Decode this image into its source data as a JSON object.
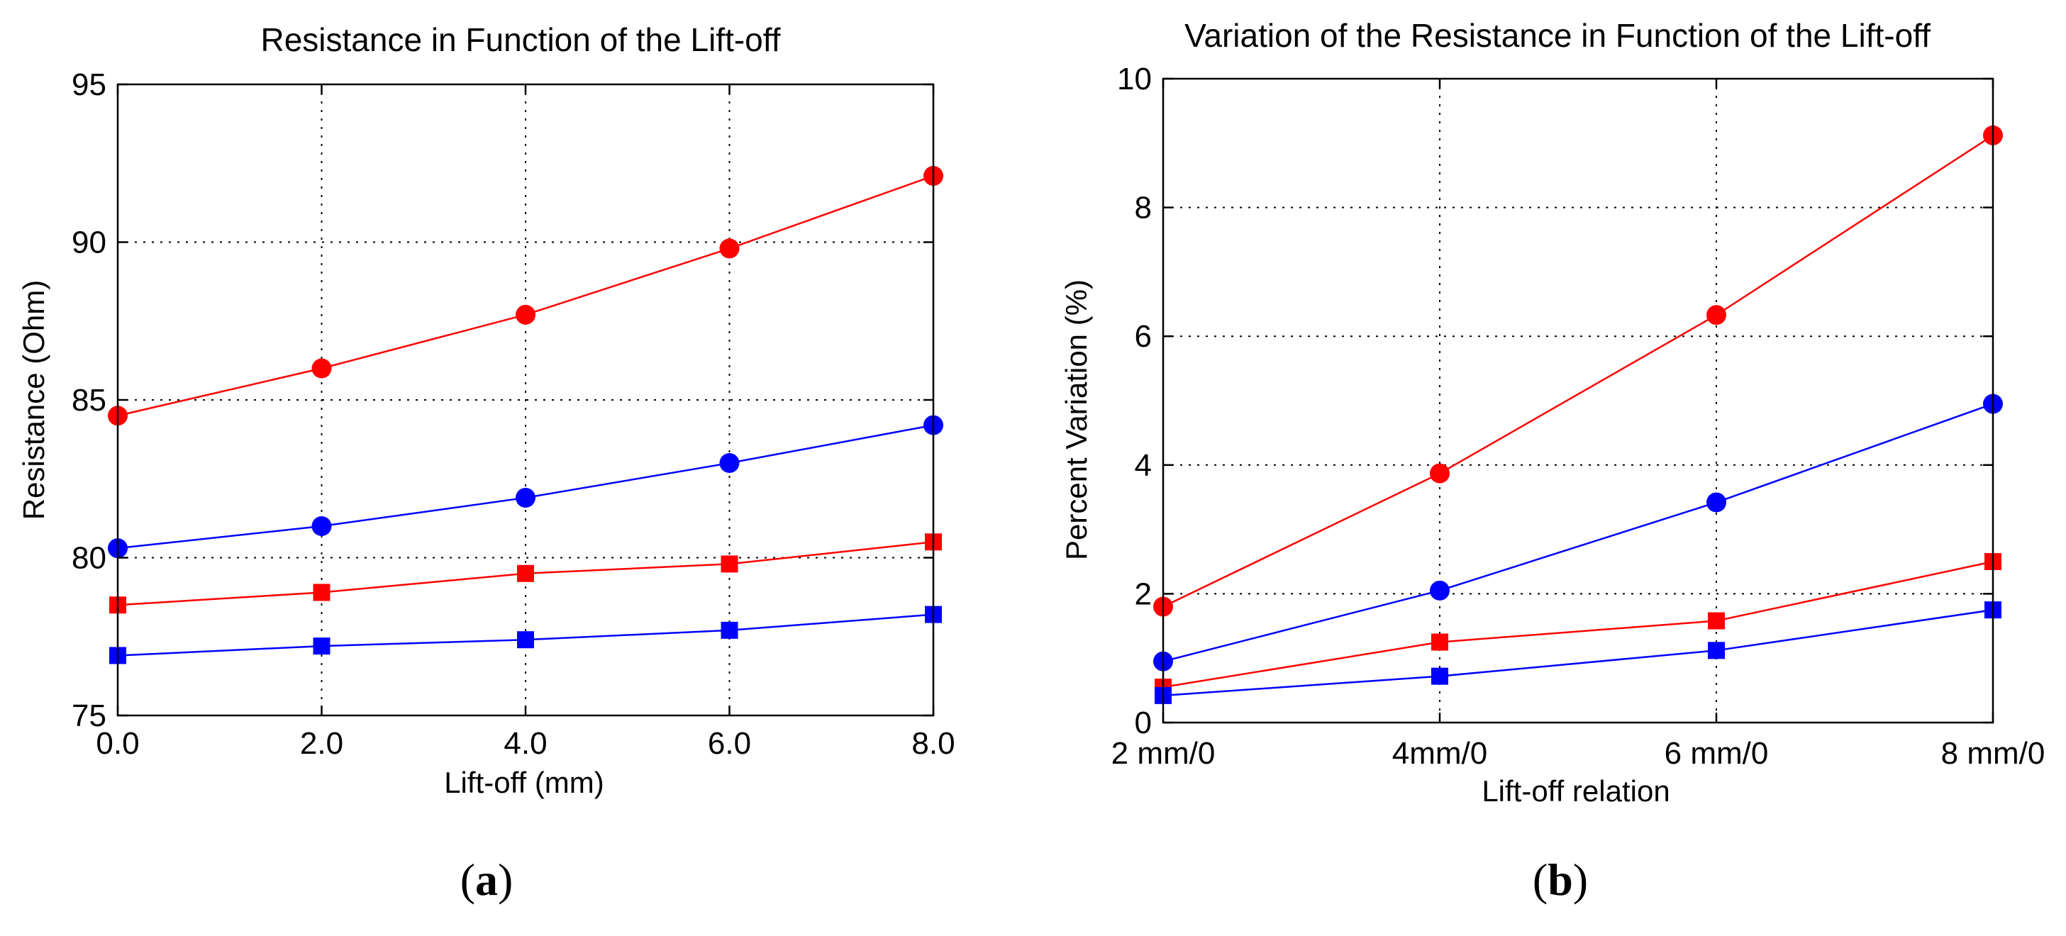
{
  "chart_data": [
    {
      "id": "a",
      "type": "line",
      "panel_label": "a",
      "title": "Resistance in Function of the Lift-off",
      "xlabel": "Lift-off (mm)",
      "ylabel": "Resistance  (Ohm)",
      "x": [
        0,
        2,
        4,
        6,
        8
      ],
      "xtick_labels": [
        "0.0",
        "2.0",
        "4.0",
        "6.0",
        "8.0"
      ],
      "xlim": [
        0,
        8
      ],
      "ylim": [
        75,
        95
      ],
      "yticks": [
        75,
        80,
        85,
        90,
        95
      ],
      "ytick_labels": [
        "75",
        "80",
        "85",
        "90",
        "95"
      ],
      "grid": true,
      "series": [
        {
          "name": "red-circle",
          "color": "#ff0000",
          "marker": "circle",
          "values": [
            84.5,
            86.0,
            87.7,
            89.8,
            92.1
          ]
        },
        {
          "name": "blue-circle",
          "color": "#0000ff",
          "marker": "circle",
          "values": [
            80.3,
            81.0,
            81.9,
            83.0,
            84.2
          ]
        },
        {
          "name": "red-square",
          "color": "#ff0000",
          "marker": "square",
          "values": [
            78.5,
            78.9,
            79.5,
            79.8,
            80.5
          ]
        },
        {
          "name": "blue-square",
          "color": "#0000ff",
          "marker": "square",
          "values": [
            76.9,
            77.2,
            77.4,
            77.7,
            78.2
          ]
        }
      ]
    },
    {
      "id": "b",
      "type": "line",
      "panel_label": "b",
      "title": "Variation of the Resistance in Function of the Lift-off",
      "xlabel": "Lift-off relation",
      "ylabel": "Percent Variation (%)",
      "x": [
        0,
        1,
        2,
        3
      ],
      "xtick_labels": [
        "2 mm/0",
        "4mm/0",
        "6 mm/0",
        "8 mm/0"
      ],
      "xlim": [
        0,
        3
      ],
      "ylim": [
        0,
        10
      ],
      "yticks": [
        0,
        2,
        4,
        6,
        8,
        10
      ],
      "ytick_labels": [
        "0",
        "2",
        "4",
        "6",
        "8",
        "10"
      ],
      "grid": true,
      "series": [
        {
          "name": "red-circle",
          "color": "#ff0000",
          "marker": "circle",
          "values": [
            1.8,
            3.87,
            6.33,
            9.12
          ]
        },
        {
          "name": "blue-circle",
          "color": "#0000ff",
          "marker": "circle",
          "values": [
            0.95,
            2.05,
            3.42,
            4.95
          ]
        },
        {
          "name": "red-square",
          "color": "#ff0000",
          "marker": "square",
          "values": [
            0.55,
            1.25,
            1.58,
            2.5
          ]
        },
        {
          "name": "blue-square",
          "color": "#0000ff",
          "marker": "square",
          "values": [
            0.42,
            0.72,
            1.12,
            1.75
          ]
        }
      ]
    }
  ]
}
